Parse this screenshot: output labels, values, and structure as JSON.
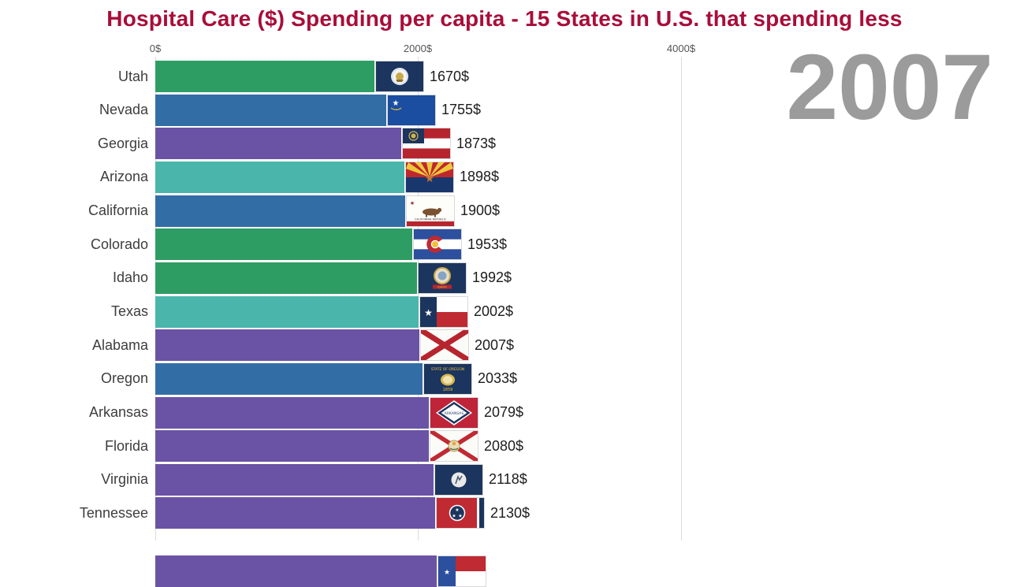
{
  "title": "Hospital Care ($) Spending per capita - 15 States in U.S. that spending less",
  "accent_colors": {
    "title": "#a90d39",
    "year": "#9b9b9b",
    "green": "#2e9d63",
    "blue": "#336da6",
    "teal": "#4ab5ab",
    "purple": "#6a53a4"
  },
  "chart_data": {
    "type": "bar",
    "orientation": "horizontal",
    "title": "Hospital Care ($) Spending per capita - 15 States in U.S. that spending less",
    "year": "2007",
    "value_unit": "$ per capita",
    "legend": "none",
    "grid": "vertical-lines",
    "x_axis": {
      "ticks": [
        "0$",
        "2000$",
        "4000$"
      ],
      "tick_values": [
        0,
        2000,
        4000
      ]
    },
    "categories": [
      "Utah",
      "Nevada",
      "Georgia",
      "Arizona",
      "California",
      "Colorado",
      "Idaho",
      "Texas",
      "Alabama",
      "Oregon",
      "Arkansas",
      "Florida",
      "Virginia",
      "Tennessee"
    ],
    "values": [
      1670,
      1755,
      1873,
      1898,
      1900,
      1953,
      1992,
      2002,
      2007,
      2033,
      2079,
      2080,
      2118,
      2130
    ],
    "states": [
      {
        "name": "Utah",
        "value": 1670,
        "label": "1670$",
        "color": "#2e9d63",
        "flag": "utah-flag"
      },
      {
        "name": "Nevada",
        "value": 1755,
        "label": "1755$",
        "color": "#336da6",
        "flag": "nevada-flag"
      },
      {
        "name": "Georgia",
        "value": 1873,
        "label": "1873$",
        "color": "#6a53a4",
        "flag": "georgia-flag"
      },
      {
        "name": "Arizona",
        "value": 1898,
        "label": "1898$",
        "color": "#4ab5ab",
        "flag": "arizona-flag"
      },
      {
        "name": "California",
        "value": 1900,
        "label": "1900$",
        "color": "#336da6",
        "flag": "california-flag"
      },
      {
        "name": "Colorado",
        "value": 1953,
        "label": "1953$",
        "color": "#2e9d63",
        "flag": "colorado-flag"
      },
      {
        "name": "Idaho",
        "value": 1992,
        "label": "1992$",
        "color": "#2e9d63",
        "flag": "idaho-flag"
      },
      {
        "name": "Texas",
        "value": 2002,
        "label": "2002$",
        "color": "#4ab5ab",
        "flag": "texas-flag"
      },
      {
        "name": "Alabama",
        "value": 2007,
        "label": "2007$",
        "color": "#6a53a4",
        "flag": "alabama-flag"
      },
      {
        "name": "Oregon",
        "value": 2033,
        "label": "2033$",
        "color": "#336da6",
        "flag": "oregon-flag"
      },
      {
        "name": "Arkansas",
        "value": 2079,
        "label": "2079$",
        "color": "#6a53a4",
        "flag": "arkansas-flag"
      },
      {
        "name": "Florida",
        "value": 2080,
        "label": "2080$",
        "color": "#6a53a4",
        "flag": "florida-flag"
      },
      {
        "name": "Virginia",
        "value": 2118,
        "label": "2118$",
        "color": "#6a53a4",
        "flag": "virginia-flag"
      },
      {
        "name": "Tennessee",
        "value": 2130,
        "label": "2130$",
        "color": "#6a53a4",
        "flag": "tennessee-flag"
      }
    ],
    "partial_row": {
      "note": "15th bar partially visible, clipped at bottom edge of frame",
      "color": "#6a53a4",
      "flag": "north-carolina-flag"
    }
  }
}
